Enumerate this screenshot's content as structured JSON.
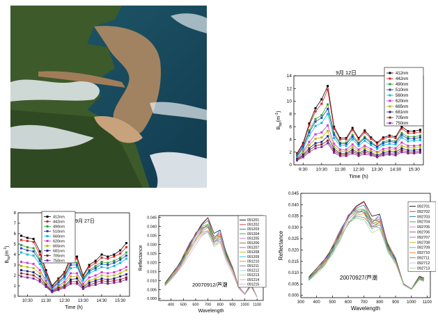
{
  "satellite_image": {
    "label": "satellite-true-color-image"
  },
  "palette": {
    "bb_series": [
      "#000000",
      "#e41a1c",
      "#2ca02c",
      "#1f3fbf",
      "#00bcd4",
      "#d62fd6",
      "#b5b800",
      "#1a237e",
      "#8b1a1a",
      "#7b1fa2"
    ],
    "refl_series": [
      "#000000",
      "#d62728",
      "#1f77b4",
      "#2ca02c",
      "#e377c2",
      "#8c564b",
      "#9467bd",
      "#bcbd22",
      "#17becf",
      "#ff7f0e",
      "#7f7f7f",
      "#aec7e8",
      "#98df8a",
      "#ff9896",
      "#c5b0d5"
    ]
  },
  "chart_data": [
    {
      "id": "bb_sep12",
      "type": "line",
      "title": "9月 12日",
      "xlabel": "Time (h)",
      "ylabel": "B",
      "ylabel_sub": "bp",
      "ylabel_unit": "(m",
      "ylabel_sup": "-1",
      "ylabel_close": ")",
      "xlim": [
        9.0,
        16.0
      ],
      "ylim": [
        0,
        14
      ],
      "yticks": [
        0,
        2,
        4,
        6,
        8,
        10,
        12,
        14
      ],
      "ytick_labels": [
        "0",
        "2",
        "4",
        "6",
        "8",
        "10",
        "12",
        "14"
      ],
      "xticks": [
        9.5,
        10.5,
        11.5,
        12.5,
        13.5,
        14.5,
        15.5
      ],
      "xtick_labels": [
        "9:30",
        "10:30",
        "11:30",
        "12:30",
        "13:30",
        "14:30",
        "15:30"
      ],
      "x": [
        9.17,
        9.5,
        9.83,
        10.17,
        10.5,
        10.83,
        11.17,
        11.5,
        11.83,
        12.17,
        12.5,
        12.83,
        13.17,
        13.5,
        13.83,
        14.17,
        14.5,
        14.83,
        15.17,
        15.5,
        15.83
      ],
      "series": [
        {
          "name": "412nm",
          "values": [
            1.8,
            3.4,
            6.5,
            8.9,
            10.3,
            12.4,
            6.0,
            4.2,
            4.2,
            5.8,
            4.2,
            5.4,
            4.3,
            3.5,
            4.3,
            4.6,
            4.4,
            6.0,
            5.3,
            5.3,
            5.5
          ]
        },
        {
          "name": "442nm",
          "values": [
            1.7,
            3.2,
            6.2,
            8.4,
            9.6,
            11.8,
            5.7,
            4.0,
            4.0,
            5.5,
            4.0,
            5.1,
            4.1,
            3.3,
            4.1,
            4.4,
            4.2,
            5.7,
            5.0,
            5.0,
            5.2
          ]
        },
        {
          "name": "490nm",
          "values": [
            1.5,
            2.9,
            5.4,
            7.2,
            7.8,
            9.5,
            5.0,
            3.5,
            3.5,
            4.7,
            3.5,
            4.4,
            3.6,
            2.9,
            3.6,
            3.9,
            3.7,
            5.0,
            4.4,
            4.4,
            4.6
          ]
        },
        {
          "name": "510nm",
          "values": [
            1.4,
            2.8,
            5.1,
            6.8,
            7.4,
            8.8,
            4.7,
            3.3,
            3.3,
            4.4,
            3.3,
            4.2,
            3.4,
            2.8,
            3.4,
            3.7,
            3.5,
            4.7,
            4.1,
            4.1,
            4.3
          ]
        },
        {
          "name": "560nm",
          "values": [
            1.3,
            2.5,
            4.6,
            6.1,
            6.6,
            8.0,
            4.2,
            3.0,
            3.0,
            4.0,
            3.0,
            3.8,
            3.1,
            2.5,
            3.1,
            3.3,
            3.2,
            4.3,
            3.7,
            3.8,
            3.9
          ]
        },
        {
          "name": "620nm",
          "values": [
            1.1,
            2.1,
            3.6,
            4.8,
            5.1,
            6.2,
            3.3,
            2.4,
            2.4,
            3.2,
            2.4,
            3.0,
            2.5,
            2.0,
            2.5,
            2.7,
            2.6,
            3.5,
            3.0,
            3.0,
            3.1
          ]
        },
        {
          "name": "665nm",
          "values": [
            1.0,
            1.9,
            3.1,
            4.1,
            4.3,
            5.3,
            2.9,
            2.1,
            2.1,
            2.8,
            2.1,
            2.7,
            2.2,
            1.8,
            2.2,
            2.4,
            2.3,
            3.0,
            2.7,
            2.7,
            2.8
          ]
        },
        {
          "name": "681nm",
          "values": [
            0.9,
            1.6,
            2.6,
            3.4,
            3.6,
            4.5,
            2.5,
            1.8,
            1.8,
            2.4,
            1.8,
            2.3,
            1.9,
            1.5,
            1.9,
            2.1,
            2.0,
            2.6,
            2.3,
            2.3,
            2.4
          ]
        },
        {
          "name": "705nm",
          "values": [
            0.8,
            1.4,
            2.3,
            3.0,
            3.2,
            3.8,
            2.2,
            1.6,
            1.6,
            2.1,
            1.6,
            2.0,
            1.7,
            1.3,
            1.7,
            1.8,
            1.7,
            2.3,
            2.0,
            2.0,
            2.1
          ]
        },
        {
          "name": "750nm",
          "values": [
            0.7,
            1.2,
            2.0,
            2.6,
            2.8,
            3.4,
            1.9,
            1.4,
            1.4,
            1.8,
            1.4,
            1.7,
            1.5,
            1.2,
            1.5,
            1.6,
            1.5,
            2.0,
            1.8,
            1.8,
            1.9
          ]
        }
      ]
    },
    {
      "id": "bb_sep27",
      "type": "line",
      "title": "9月 27日",
      "xlabel": "Time (h)",
      "ylabel": "B",
      "ylabel_sub": "bp",
      "ylabel_unit": "(m",
      "ylabel_sup": "-1",
      "ylabel_close": ")",
      "xlim": [
        10.0,
        16.0
      ],
      "ylim": [
        0,
        8
      ],
      "yticks": [
        0,
        1,
        2,
        3,
        4,
        5,
        6,
        7,
        8
      ],
      "ytick_labels": [
        "0",
        "1",
        "2",
        "3",
        "4",
        "5",
        "6",
        "7",
        "8"
      ],
      "xticks": [
        10.5,
        11.5,
        12.5,
        13.5,
        14.5,
        15.5
      ],
      "xtick_labels": [
        "10:30",
        "11:30",
        "12:30",
        "13:30",
        "14:30",
        "15:30"
      ],
      "x": [
        10.17,
        10.5,
        10.83,
        11.17,
        11.5,
        11.83,
        12.17,
        12.5,
        12.83,
        13.17,
        13.5,
        13.83,
        14.17,
        14.5,
        14.83,
        15.17,
        15.5,
        15.83
      ],
      "series": [
        {
          "name": "412nm",
          "values": [
            5.8,
            5.6,
            5.5,
            4.3,
            2.5,
            1.0,
            1.7,
            2.3,
            3.8,
            3.8,
            2.0,
            3.0,
            3.4,
            4.0,
            3.8,
            4.0,
            4.4,
            5.1
          ]
        },
        {
          "name": "442nm",
          "values": [
            5.4,
            5.3,
            5.2,
            4.0,
            2.3,
            0.9,
            1.6,
            2.2,
            3.5,
            3.6,
            1.9,
            2.8,
            3.2,
            3.7,
            3.6,
            3.8,
            4.1,
            4.7
          ]
        },
        {
          "name": "490nm",
          "values": [
            4.9,
            4.7,
            4.6,
            3.6,
            2.1,
            0.8,
            1.4,
            2.0,
            3.2,
            3.2,
            1.7,
            2.5,
            2.9,
            3.3,
            3.2,
            3.4,
            3.7,
            4.2
          ]
        },
        {
          "name": "510nm",
          "values": [
            4.6,
            4.4,
            4.3,
            3.4,
            2.0,
            0.8,
            1.3,
            1.9,
            3.0,
            3.0,
            1.6,
            2.4,
            2.7,
            3.1,
            3.0,
            3.2,
            3.5,
            3.9
          ]
        },
        {
          "name": "560nm",
          "values": [
            4.2,
            4.0,
            3.9,
            3.1,
            1.8,
            0.7,
            1.2,
            1.7,
            2.7,
            2.8,
            1.5,
            2.2,
            2.5,
            2.8,
            2.7,
            2.9,
            3.2,
            3.6
          ]
        },
        {
          "name": "620nm",
          "values": [
            3.3,
            3.2,
            3.1,
            2.5,
            1.5,
            0.6,
            1.0,
            1.4,
            2.2,
            2.2,
            1.2,
            1.8,
            2.0,
            2.3,
            2.2,
            2.3,
            2.5,
            2.8
          ]
        },
        {
          "name": "665nm",
          "values": [
            2.9,
            2.8,
            2.7,
            2.2,
            1.3,
            0.5,
            0.9,
            1.2,
            1.9,
            1.9,
            1.0,
            1.5,
            1.7,
            2.0,
            1.9,
            2.0,
            2.2,
            2.5
          ]
        },
        {
          "name": "681nm",
          "values": [
            2.5,
            2.4,
            2.3,
            1.9,
            1.1,
            0.5,
            0.8,
            1.0,
            1.6,
            1.7,
            0.9,
            1.3,
            1.5,
            1.7,
            1.6,
            1.7,
            1.9,
            2.1
          ]
        },
        {
          "name": "705nm",
          "values": [
            2.2,
            2.1,
            2.0,
            1.6,
            1.0,
            0.4,
            0.7,
            0.9,
            1.4,
            1.4,
            0.8,
            1.1,
            1.3,
            1.5,
            1.4,
            1.5,
            1.6,
            1.8
          ]
        },
        {
          "name": "750nm",
          "values": [
            1.9,
            1.8,
            1.7,
            1.4,
            0.9,
            0.4,
            0.6,
            0.8,
            1.2,
            1.2,
            0.7,
            1.0,
            1.1,
            1.3,
            1.2,
            1.3,
            1.4,
            1.6
          ]
        }
      ]
    },
    {
      "id": "refl_0912",
      "type": "line",
      "annotation": "20070912/芦潮",
      "xlabel": "Wavelength",
      "ylabel": "Reflectance",
      "xlim": [
        300,
        1150
      ],
      "ylim": [
        -0.001,
        0.046
      ],
      "xticks": [
        400,
        500,
        600,
        700,
        800,
        900,
        1000,
        1100
      ],
      "xtick_labels": [
        "400",
        "500",
        "600",
        "700",
        "800",
        "900",
        "1000",
        "1100"
      ],
      "yticks": [
        0.0,
        0.005,
        0.01,
        0.015,
        0.02,
        0.025,
        0.03,
        0.035,
        0.04,
        0.045
      ],
      "ytick_labels": [
        "0.000",
        "0.005",
        "0.010",
        "0.015",
        "0.020",
        "0.025",
        "0.030",
        "0.035",
        "0.040",
        "0.045"
      ],
      "x": [
        350,
        400,
        450,
        500,
        550,
        600,
        650,
        700,
        750,
        800,
        850,
        900,
        950,
        1000,
        1050,
        1100
      ],
      "base_shape": [
        0.19,
        0.29,
        0.4,
        0.54,
        0.7,
        0.85,
        0.95,
        1.0,
        0.8,
        0.86,
        0.58,
        0.4,
        0.16,
        0.06,
        0.18,
        0.02
      ],
      "series": [
        {
          "name": "091201",
          "peak": 0.0435
        },
        {
          "name": "091202",
          "peak": 0.043
        },
        {
          "name": "091203",
          "peak": 0.0426
        },
        {
          "name": "091204",
          "peak": 0.042
        },
        {
          "name": "091205",
          "peak": 0.0415
        },
        {
          "name": "091206",
          "peak": 0.041
        },
        {
          "name": "091207",
          "peak": 0.0405
        },
        {
          "name": "091208",
          "peak": 0.04
        },
        {
          "name": "091209",
          "peak": 0.0395
        },
        {
          "name": "091210",
          "peak": 0.039
        },
        {
          "name": "091211",
          "peak": 0.0385
        },
        {
          "name": "091212",
          "peak": 0.038
        },
        {
          "name": "091213",
          "peak": 0.0374
        },
        {
          "name": "091214",
          "peak": 0.0368
        },
        {
          "name": "091215",
          "peak": 0.036
        }
      ]
    },
    {
      "id": "refl_0927",
      "type": "line",
      "annotation": "20070927/芦潮",
      "xlabel": "Wavelength",
      "ylabel": "Reflectance",
      "xlim": [
        300,
        1120
      ],
      "ylim": [
        -0.001,
        0.045
      ],
      "xticks": [
        300,
        400,
        500,
        600,
        700,
        800,
        900,
        1000,
        1100
      ],
      "xtick_labels": [
        "300",
        "400",
        "500",
        "600",
        "700",
        "800",
        "900",
        "1000",
        "1100"
      ],
      "yticks": [
        0.0,
        0.005,
        0.01,
        0.015,
        0.02,
        0.025,
        0.03,
        0.035,
        0.04,
        0.045
      ],
      "ytick_labels": [
        "0.000",
        "0.005",
        "0.010",
        "0.015",
        "0.020",
        "0.025",
        "0.030",
        "0.035",
        "0.040",
        "0.045"
      ],
      "x": [
        350,
        400,
        450,
        500,
        550,
        600,
        650,
        700,
        750,
        800,
        850,
        900,
        950,
        1000,
        1050,
        1080
      ],
      "base_shape": [
        0.19,
        0.28,
        0.38,
        0.52,
        0.7,
        0.88,
        0.96,
        0.98,
        0.82,
        0.86,
        0.55,
        0.4,
        0.13,
        0.07,
        0.2,
        0.18
      ],
      "series": [
        {
          "name": "092701",
          "peak": 0.041
        },
        {
          "name": "092702",
          "peak": 0.0405
        },
        {
          "name": "092703",
          "peak": 0.04
        },
        {
          "name": "092704",
          "peak": 0.0395
        },
        {
          "name": "092705",
          "peak": 0.039
        },
        {
          "name": "092706",
          "peak": 0.0385
        },
        {
          "name": "092707",
          "peak": 0.038
        },
        {
          "name": "092708",
          "peak": 0.0375
        },
        {
          "name": "092709",
          "peak": 0.037
        },
        {
          "name": "092710",
          "peak": 0.0365
        },
        {
          "name": "092711",
          "peak": 0.036
        },
        {
          "name": "092712",
          "peak": 0.0355
        },
        {
          "name": "092713",
          "peak": 0.035
        }
      ]
    }
  ]
}
